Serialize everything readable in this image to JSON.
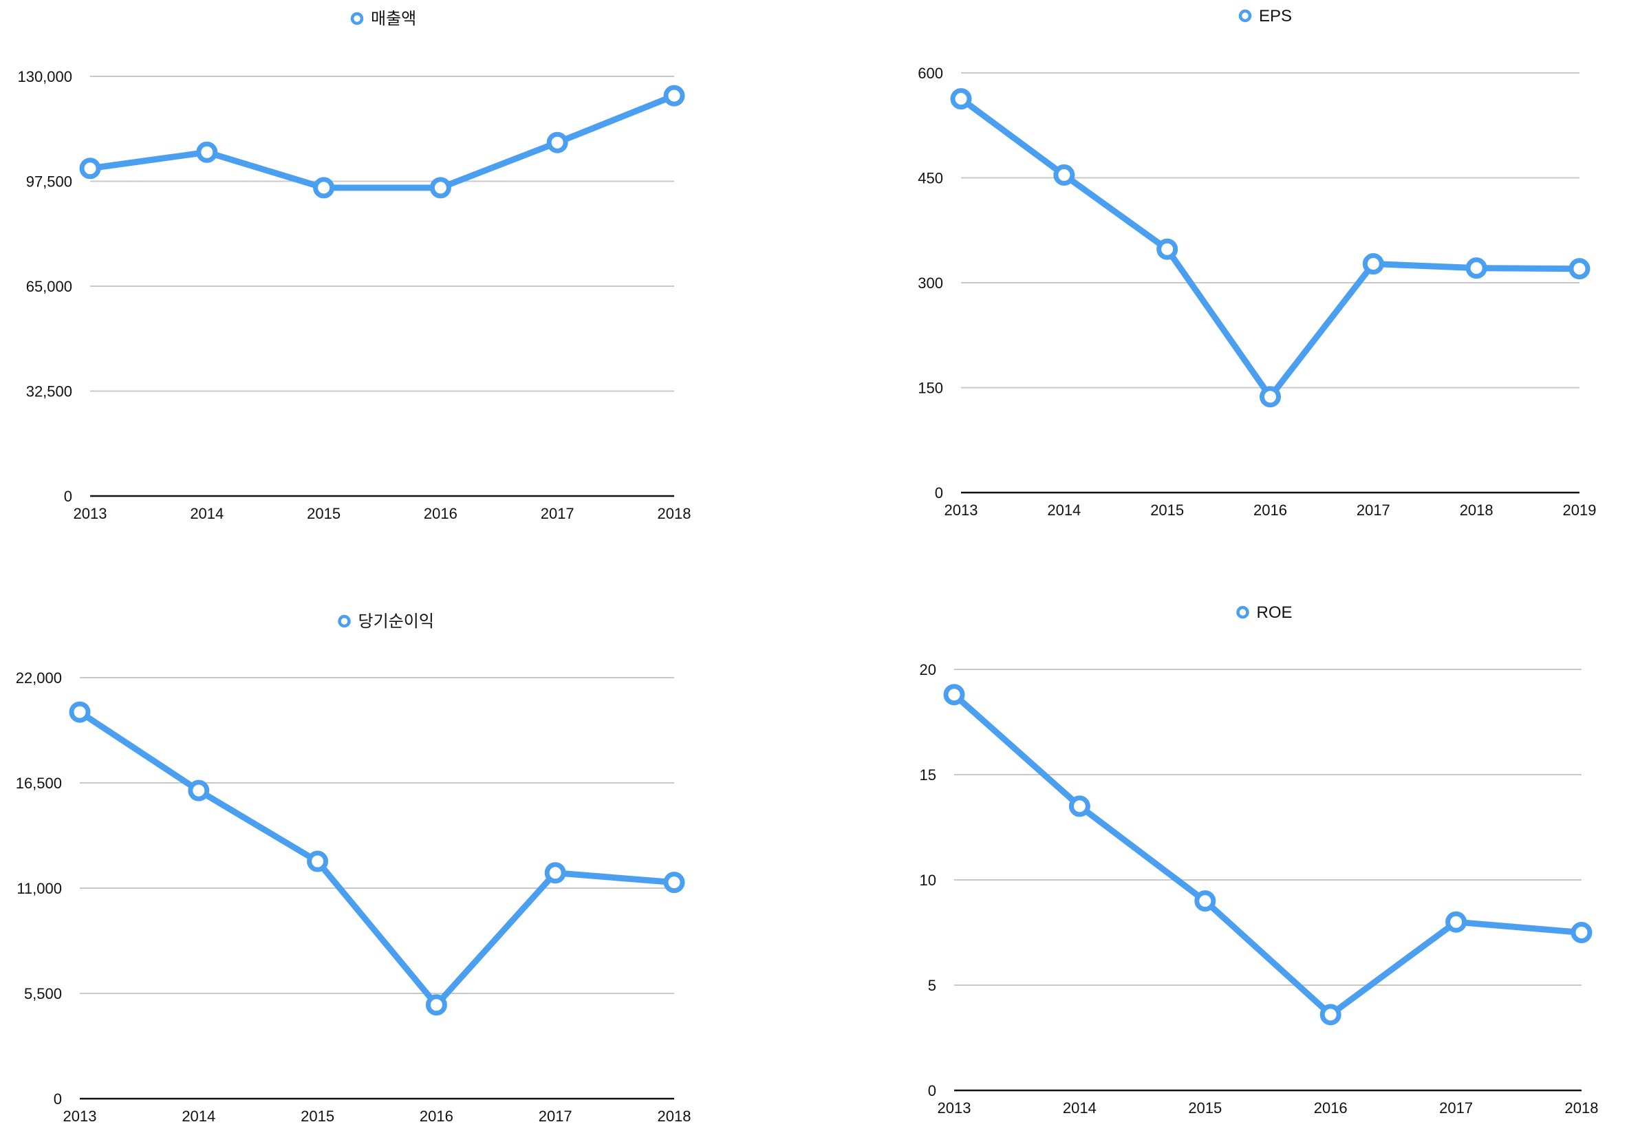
{
  "accent_color": "#4a9ff0",
  "chart_data": [
    {
      "type": "line",
      "legend": "매출액",
      "legend_position": "top-center",
      "categories": [
        "2013",
        "2014",
        "2015",
        "2016",
        "2017",
        "2018"
      ],
      "series": [
        {
          "name": "매출액",
          "values": [
            101500,
            106500,
            95500,
            95500,
            109500,
            124000
          ]
        }
      ],
      "ylim": [
        0,
        130000
      ],
      "yticks": [
        "0",
        "32,500",
        "65,000",
        "97,500",
        "130,000"
      ],
      "grid": true
    },
    {
      "type": "line",
      "legend": "EPS",
      "legend_position": "top-center",
      "categories": [
        "2013",
        "2014",
        "2015",
        "2016",
        "2017",
        "2018",
        "2019"
      ],
      "series": [
        {
          "name": "EPS",
          "values": [
            563,
            454,
            348,
            137,
            327,
            321,
            320
          ]
        }
      ],
      "ylim": [
        0,
        600
      ],
      "yticks": [
        "0",
        "150",
        "300",
        "450",
        "600"
      ],
      "grid": true
    },
    {
      "type": "line",
      "legend": "당기순이익",
      "legend_position": "top-center",
      "categories": [
        "2013",
        "2014",
        "2015",
        "2016",
        "2017",
        "2018"
      ],
      "series": [
        {
          "name": "당기순이익",
          "values": [
            20200,
            16100,
            12400,
            4900,
            11800,
            11300
          ]
        }
      ],
      "ylim": [
        0,
        22000
      ],
      "yticks": [
        "0",
        "5,500",
        "11,000",
        "16,500",
        "22,000"
      ],
      "grid": true
    },
    {
      "type": "line",
      "legend": "ROE",
      "legend_position": "top-center",
      "categories": [
        "2013",
        "2014",
        "2015",
        "2016",
        "2017",
        "2018"
      ],
      "series": [
        {
          "name": "ROE",
          "values": [
            18.8,
            13.5,
            9.0,
            3.6,
            8.0,
            7.5
          ]
        }
      ],
      "ylim": [
        0,
        20
      ],
      "yticks": [
        "0",
        "5",
        "10",
        "15",
        "20"
      ],
      "grid": true
    }
  ]
}
